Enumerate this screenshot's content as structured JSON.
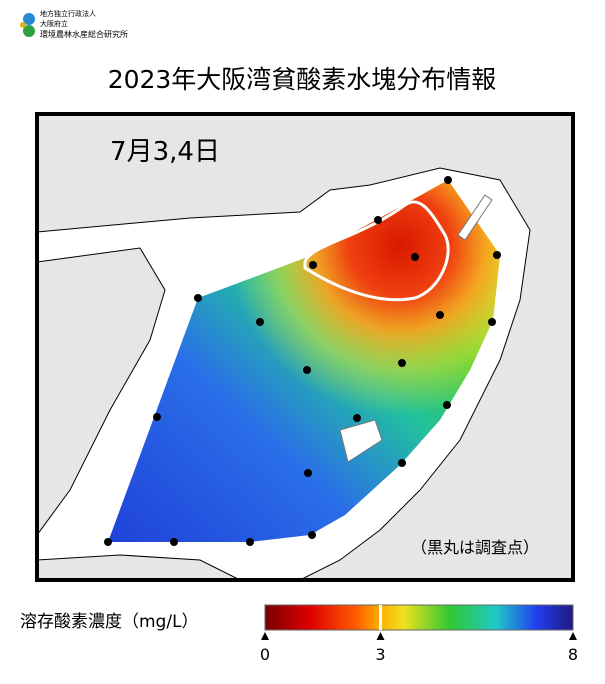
{
  "header": {
    "org_lines": [
      "地方独立行政法人",
      "大阪府立",
      "環境農林水産総合研究所"
    ],
    "title": "2023年大阪湾貧酸素水塊分布情報"
  },
  "map": {
    "date": "7月3,4日",
    "note": "（黒丸は調査点）"
  },
  "colorbar": {
    "label": "溶存酸素濃度（mg/L）",
    "range": [
      0,
      8
    ],
    "ticks": [
      0,
      3,
      8
    ],
    "contour": 3
  }
}
